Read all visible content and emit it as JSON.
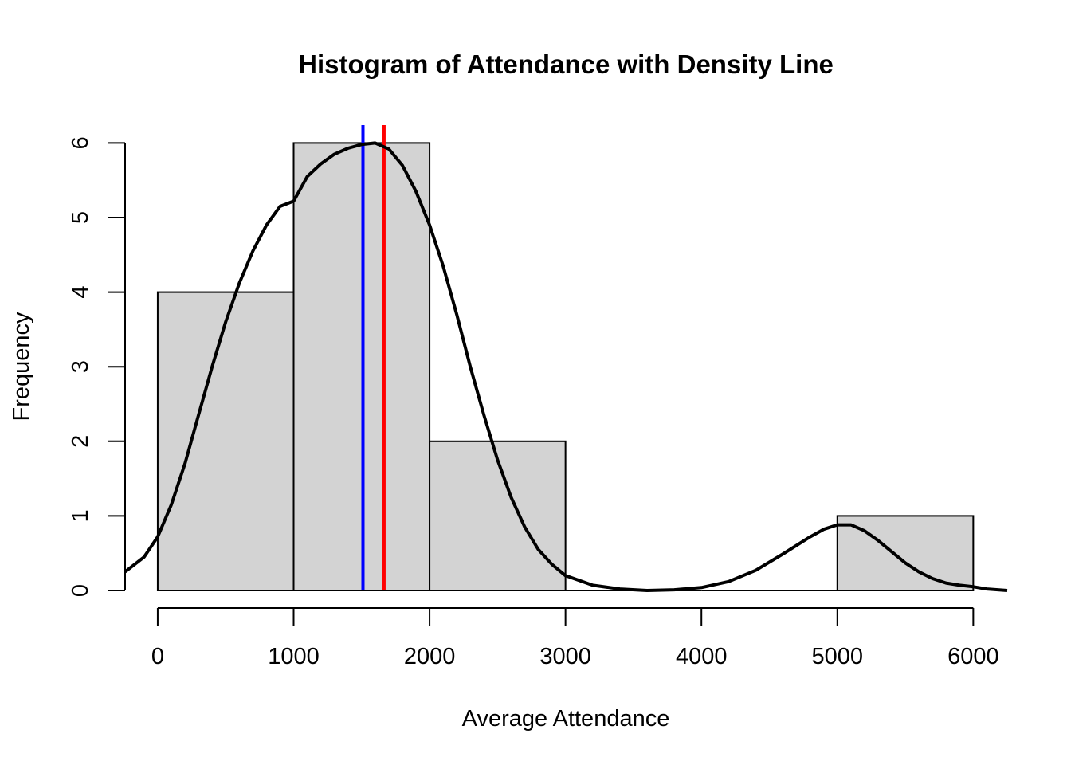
{
  "chart_data": {
    "type": "bar",
    "title": "Histogram of Attendance with Density Line",
    "xlabel": "Average Attendance",
    "ylabel": "Frequency",
    "bins": [
      {
        "from": 0,
        "to": 1000,
        "count": 4
      },
      {
        "from": 1000,
        "to": 2000,
        "count": 6
      },
      {
        "from": 2000,
        "to": 3000,
        "count": 2
      },
      {
        "from": 3000,
        "to": 4000,
        "count": 0
      },
      {
        "from": 4000,
        "to": 5000,
        "count": 0
      },
      {
        "from": 5000,
        "to": 6000,
        "count": 1
      }
    ],
    "x_ticks": [
      0,
      1000,
      2000,
      3000,
      4000,
      5000,
      6000
    ],
    "y_ticks": [
      0,
      1,
      2,
      3,
      4,
      5,
      6
    ],
    "xlim": [
      -240,
      6250
    ],
    "ylim": [
      0,
      6.25
    ],
    "density_line": {
      "color": "#000000",
      "points": [
        [
          -240,
          0.25
        ],
        [
          -100,
          0.45
        ],
        [
          0,
          0.72
        ],
        [
          100,
          1.15
        ],
        [
          200,
          1.7
        ],
        [
          300,
          2.35
        ],
        [
          400,
          3.0
        ],
        [
          500,
          3.6
        ],
        [
          600,
          4.12
        ],
        [
          700,
          4.55
        ],
        [
          800,
          4.9
        ],
        [
          900,
          5.15
        ],
        [
          1000,
          5.22
        ],
        [
          1100,
          5.55
        ],
        [
          1200,
          5.72
        ],
        [
          1300,
          5.85
        ],
        [
          1400,
          5.93
        ],
        [
          1500,
          5.98
        ],
        [
          1600,
          6.0
        ],
        [
          1700,
          5.92
        ],
        [
          1800,
          5.7
        ],
        [
          1900,
          5.35
        ],
        [
          2000,
          4.9
        ],
        [
          2100,
          4.35
        ],
        [
          2200,
          3.7
        ],
        [
          2300,
          3.0
        ],
        [
          2400,
          2.35
        ],
        [
          2500,
          1.75
        ],
        [
          2600,
          1.25
        ],
        [
          2700,
          0.85
        ],
        [
          2800,
          0.55
        ],
        [
          2900,
          0.35
        ],
        [
          3000,
          0.2
        ],
        [
          3200,
          0.07
        ],
        [
          3400,
          0.02
        ],
        [
          3600,
          0.0
        ],
        [
          3800,
          0.01
        ],
        [
          4000,
          0.04
        ],
        [
          4200,
          0.12
        ],
        [
          4400,
          0.27
        ],
        [
          4600,
          0.49
        ],
        [
          4800,
          0.72
        ],
        [
          4900,
          0.82
        ],
        [
          5000,
          0.88
        ],
        [
          5100,
          0.88
        ],
        [
          5200,
          0.8
        ],
        [
          5300,
          0.67
        ],
        [
          5400,
          0.52
        ],
        [
          5500,
          0.37
        ],
        [
          5600,
          0.25
        ],
        [
          5700,
          0.16
        ],
        [
          5800,
          0.1
        ],
        [
          5900,
          0.07
        ],
        [
          6000,
          0.05
        ],
        [
          6100,
          0.02
        ],
        [
          6250,
          0.0
        ]
      ]
    },
    "vertical_lines": [
      {
        "x": 1510,
        "color": "#0000ff"
      },
      {
        "x": 1665,
        "color": "#ff0000"
      }
    ],
    "colors": {
      "bar_fill": "#d3d3d3",
      "bar_stroke": "#000000"
    },
    "grid": false,
    "legend": "none"
  }
}
